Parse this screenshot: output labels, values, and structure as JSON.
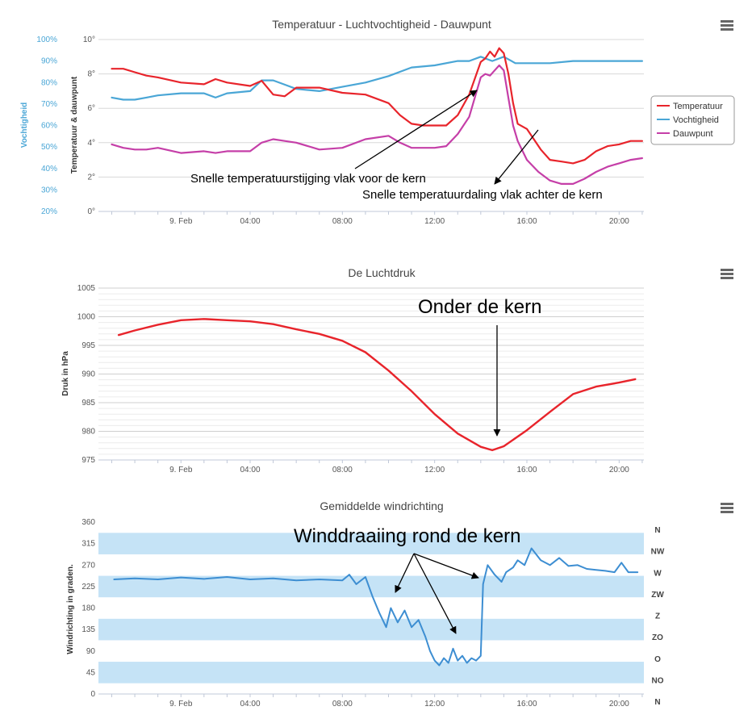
{
  "chart_data": [
    {
      "type": "line",
      "title": "Temperatuur - Luchtvochtigheid - Dauwpunt",
      "xlabel": "",
      "x_ticks": [
        "9. Feb",
        "04:00",
        "08:00",
        "12:00",
        "16:00",
        "20:00"
      ],
      "x_range_hours": [
        -2,
        21
      ],
      "y_left": {
        "label": "Temperatuur & dauwpunt",
        "ticks": [
          "0°",
          "2°",
          "4°",
          "6°",
          "8°",
          "10°"
        ],
        "range": [
          0,
          10
        ]
      },
      "y_right": {
        "label": "Vochtigheid",
        "ticks": [
          "20%",
          "30%",
          "40%",
          "50%",
          "60%",
          "70%",
          "80%",
          "90%",
          "100%"
        ],
        "range": [
          20,
          100
        ]
      },
      "legend_position": "right",
      "series": [
        {
          "name": "Temperatuur",
          "color": "#e8242b",
          "axis": "left",
          "x": [
            -2,
            -1.5,
            -1,
            -0.5,
            0,
            1,
            2,
            2.5,
            3,
            4,
            4.5,
            5,
            5.5,
            6,
            7,
            8,
            9,
            10,
            10.5,
            11,
            11.5,
            12,
            12.5,
            13,
            13.5,
            14,
            14.2,
            14.4,
            14.6,
            14.8,
            15,
            15.2,
            15.4,
            15.6,
            16,
            16.3,
            16.6,
            17,
            17.5,
            18,
            18.5,
            19,
            19.5,
            20,
            20.5,
            21
          ],
          "y": [
            8.3,
            8.3,
            8.1,
            7.9,
            7.8,
            7.5,
            7.4,
            7.7,
            7.5,
            7.3,
            7.6,
            6.8,
            6.7,
            7.2,
            7.2,
            6.9,
            6.8,
            6.3,
            5.6,
            5.1,
            5.0,
            5.0,
            5.0,
            5.6,
            6.8,
            8.7,
            8.9,
            9.3,
            9.0,
            9.5,
            9.2,
            8.0,
            6.3,
            5.1,
            4.8,
            4.2,
            3.6,
            3.0,
            2.9,
            2.8,
            3.0,
            3.5,
            3.8,
            3.9,
            4.1,
            4.1
          ]
        },
        {
          "name": "Vochtigheid",
          "color": "#4aa6d6",
          "axis": "right",
          "x": [
            -2,
            -1.5,
            -1,
            -0.5,
            0,
            1,
            2,
            2.5,
            3,
            4,
            4.5,
            5,
            5.5,
            6,
            7,
            8,
            9,
            10,
            11,
            12,
            13,
            13.5,
            14,
            14.5,
            15,
            15.5,
            16,
            17,
            18,
            19,
            20,
            21
          ],
          "y": [
            73,
            72,
            72,
            73,
            74,
            75,
            75,
            73,
            75,
            76,
            81,
            81,
            79,
            77,
            76,
            78,
            80,
            83,
            87,
            88,
            90,
            90,
            92,
            90,
            92,
            89,
            89,
            89,
            90,
            90,
            90,
            90
          ]
        },
        {
          "name": "Dauwpunt",
          "color": "#c53fa8",
          "axis": "left",
          "x": [
            -2,
            -1.5,
            -1,
            -0.5,
            0,
            1,
            2,
            2.5,
            3,
            4,
            4.5,
            5,
            5.5,
            6,
            7,
            8,
            9,
            10,
            10.5,
            11,
            11.5,
            12,
            12.5,
            13,
            13.5,
            14,
            14.2,
            14.4,
            14.6,
            14.8,
            15,
            15.2,
            15.4,
            15.6,
            16,
            16.5,
            17,
            17.5,
            18,
            18.5,
            19,
            19.5,
            20,
            20.5,
            21
          ],
          "y": [
            3.9,
            3.7,
            3.6,
            3.6,
            3.7,
            3.4,
            3.5,
            3.4,
            3.5,
            3.5,
            4.0,
            4.2,
            4.1,
            4.0,
            3.6,
            3.7,
            4.2,
            4.4,
            4.0,
            3.7,
            3.7,
            3.7,
            3.8,
            4.5,
            5.5,
            7.8,
            8.0,
            7.9,
            8.2,
            8.5,
            8.2,
            6.6,
            5.0,
            4.1,
            3.0,
            2.3,
            1.8,
            1.6,
            1.6,
            1.9,
            2.3,
            2.6,
            2.8,
            3.0,
            3.1
          ]
        }
      ],
      "annotations": [
        "Snelle temperatuurstijging vlak voor de kern",
        "Snelle temperatuurdaling vlak achter de kern"
      ]
    },
    {
      "type": "line",
      "title": "De Luchtdruk",
      "xlabel": "",
      "ylabel": "Druk in hPa",
      "x_ticks": [
        "9. Feb",
        "04:00",
        "08:00",
        "12:00",
        "16:00",
        "20:00"
      ],
      "x_range_hours": [
        -2,
        21
      ],
      "y_ticks": [
        "975",
        "980",
        "985",
        "990",
        "995",
        "1000",
        "1005"
      ],
      "ylim": [
        975,
        1005
      ],
      "series": [
        {
          "name": "",
          "color": "#e8242b",
          "x": [
            -1.7,
            -1,
            0,
            1,
            2,
            3,
            4,
            5,
            6,
            7,
            8,
            9,
            10,
            11,
            12,
            13,
            14,
            14.5,
            15,
            16,
            17,
            18,
            19,
            20,
            20.7
          ],
          "y": [
            996.8,
            997.6,
            998.6,
            999.4,
            999.6,
            999.4,
            999.2,
            998.7,
            997.8,
            997.0,
            995.8,
            993.8,
            990.6,
            987.0,
            983.0,
            979.6,
            977.3,
            976.7,
            977.4,
            980.2,
            983.4,
            986.5,
            987.8,
            988.5,
            989.1
          ]
        }
      ],
      "annotations": [
        "Onder de kern"
      ]
    },
    {
      "type": "line",
      "title": "Gemiddelde windrichting",
      "xlabel": "",
      "ylabel": "Windrichting in graden.",
      "x_ticks": [
        "9. Feb",
        "04:00",
        "08:00",
        "12:00",
        "16:00",
        "20:00"
      ],
      "x_range_hours": [
        -2,
        21
      ],
      "y_ticks": [
        "0",
        "45",
        "90",
        "135",
        "180",
        "225",
        "270",
        "315",
        "360"
      ],
      "ylim": [
        0,
        360
      ],
      "compass_labels": [
        "N",
        "NW",
        "W",
        "ZW",
        "Z",
        "ZO",
        "O",
        "NO",
        "N"
      ],
      "series": [
        {
          "name": "",
          "color": "#3d8ed2",
          "x": [
            -1.9,
            -1,
            0,
            1,
            2,
            3,
            4,
            5,
            6,
            7,
            8,
            8.3,
            8.6,
            9,
            9.3,
            9.6,
            9.9,
            10.1,
            10.4,
            10.7,
            11,
            11.3,
            11.6,
            11.8,
            12,
            12.2,
            12.4,
            12.6,
            12.8,
            13,
            13.2,
            13.4,
            13.6,
            13.8,
            14,
            14.1,
            14.3,
            14.6,
            14.9,
            15.1,
            15.4,
            15.6,
            15.9,
            16.2,
            16.6,
            17,
            17.4,
            17.8,
            18.2,
            18.6,
            19,
            19.4,
            19.8,
            20.1,
            20.4,
            20.8
          ],
          "y": [
            240,
            242,
            240,
            244,
            241,
            245,
            240,
            242,
            238,
            240,
            238,
            250,
            230,
            245,
            205,
            170,
            140,
            180,
            150,
            175,
            140,
            155,
            120,
            90,
            70,
            60,
            75,
            65,
            95,
            70,
            80,
            65,
            75,
            70,
            80,
            230,
            270,
            250,
            235,
            255,
            265,
            280,
            270,
            305,
            280,
            270,
            285,
            268,
            270,
            262,
            260,
            258,
            255,
            275,
            255,
            255
          ]
        }
      ],
      "annotations": [
        "Winddraaiing rond de kern"
      ]
    }
  ]
}
